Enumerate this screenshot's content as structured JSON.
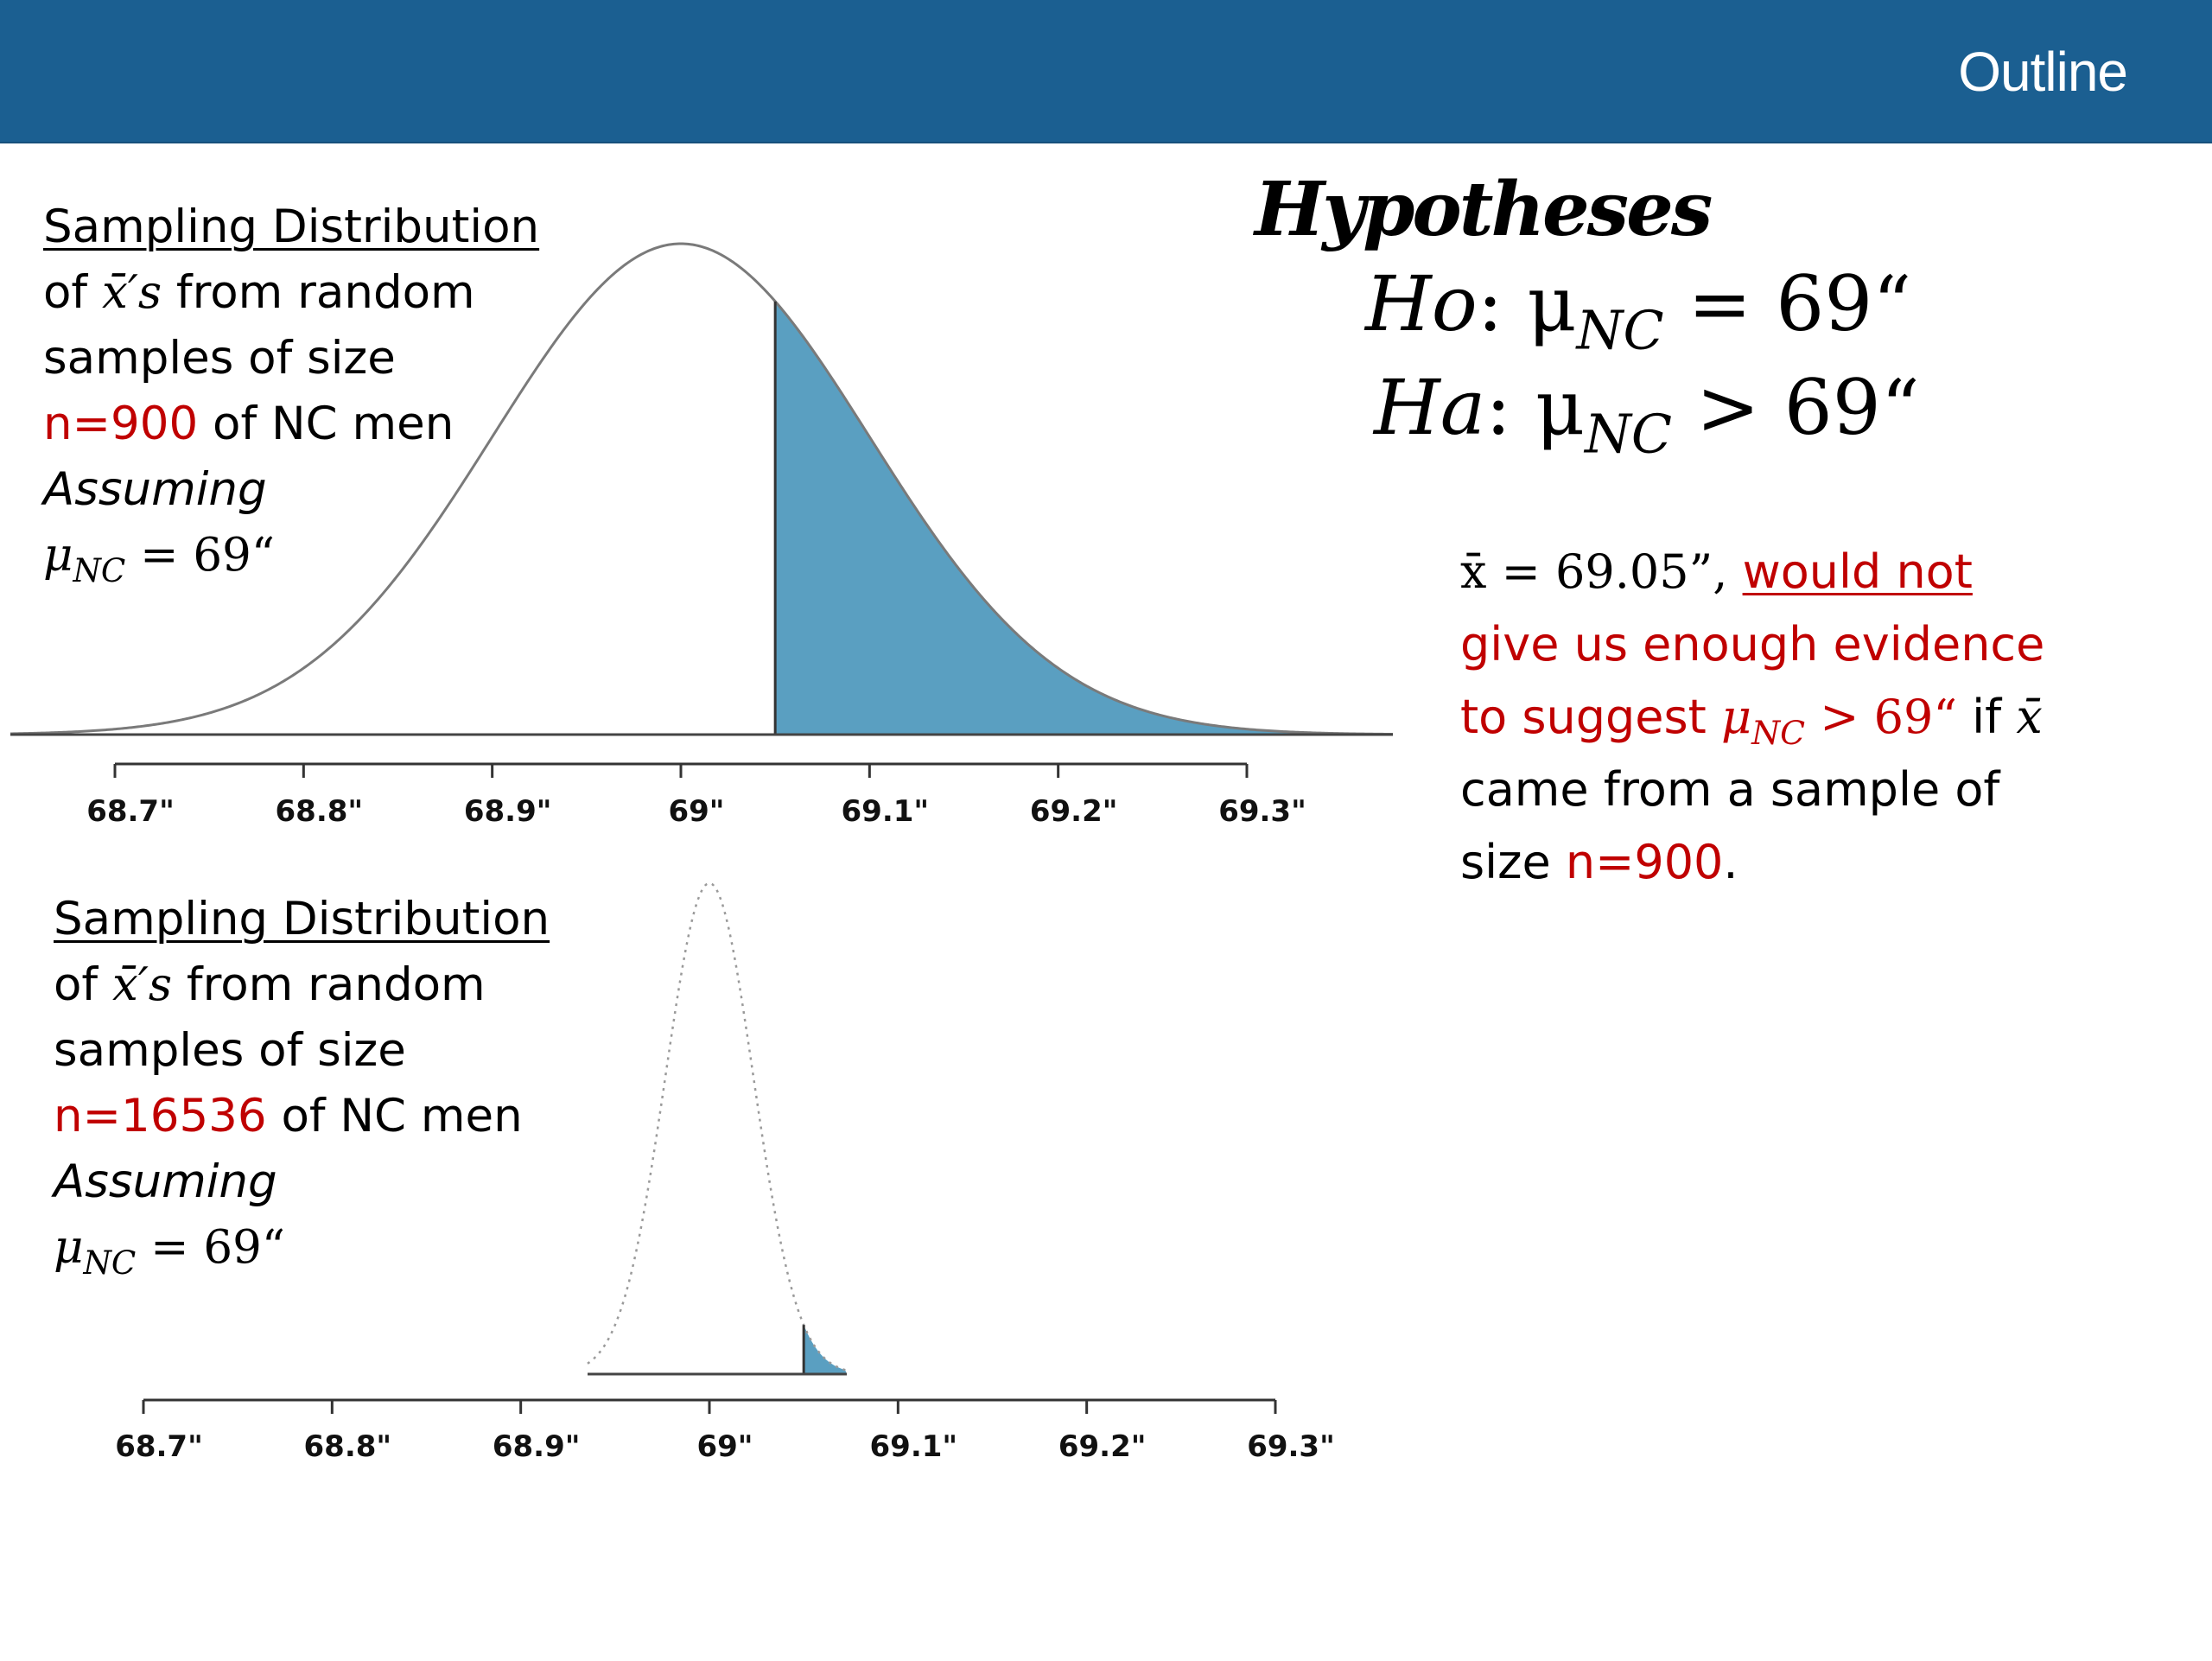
{
  "header": {
    "title": "Outline",
    "bg_color": "#1b5f91"
  },
  "top_chart": {
    "caption": {
      "line1": "Sampling Distribution",
      "line2_pre": "of ",
      "line2_math": "x̄′s",
      "line2_post": " from random",
      "line3": " samples of size",
      "line4_red": "n=900",
      "line4_post": " of NC men",
      "line5": "Assuming",
      "line6_mu": "μ",
      "line6_sub": "NC",
      "line6_post": " = 69“"
    }
  },
  "bottom_chart": {
    "caption": {
      "line1": "Sampling Distribution",
      "line2_pre": "of ",
      "line2_math": "x̄′s",
      "line2_post": " from random",
      "line3": " samples of size",
      "line4_red": "n=16536",
      "line4_post": " of NC men",
      "line5": "Assuming",
      "line6_mu": "μ",
      "line6_sub": "NC",
      "line6_post": " = 69“"
    }
  },
  "hypotheses": {
    "title": "Hypotheses",
    "ho_label": "Ho",
    "ho_rest": ": μ",
    "ho_sub": "NC",
    "ho_end": " = 69“",
    "ha_label": "Ha",
    "ha_rest": ": μ",
    "ha_sub": "NC",
    "ha_end": " > 69“"
  },
  "conclusion": {
    "l1_math": "x̄ = 69.05”,",
    "l1_red": "would not",
    "l2_red": "give us enough evidence",
    "l3_red_pre": "to suggest ",
    "l3_mu": "μ",
    "l3_sub": "NC",
    "l3_red_post": " > 69“",
    "l3_black": " if ",
    "l3_xbar": "x̄",
    "l4": "came from a sample of",
    "l5_pre": "size ",
    "l5_red": "n=900",
    "l5_post": "."
  },
  "chart_data": [
    {
      "type": "area",
      "distribution": "normal",
      "mean": 69,
      "sd": 0.1,
      "shaded_from": 69.05,
      "shade_color": "#5a9fc1",
      "xlim": [
        68.7,
        69.3
      ],
      "tick_labels": [
        "68.7\"",
        "68.8\"",
        "68.9\"",
        "69\"",
        "69.1\"",
        "69.2\"",
        "69.3\""
      ]
    },
    {
      "type": "area",
      "distribution": "normal",
      "mean": 69,
      "sd": 0.0233,
      "shaded_from": 69.05,
      "shade_color": "#5a9fc1",
      "xlim": [
        68.7,
        69.3
      ],
      "tick_labels": [
        "68.7\"",
        "68.8\"",
        "68.9\"",
        "69\"",
        "69.1\"",
        "69.2\"",
        "69.3\""
      ]
    }
  ]
}
